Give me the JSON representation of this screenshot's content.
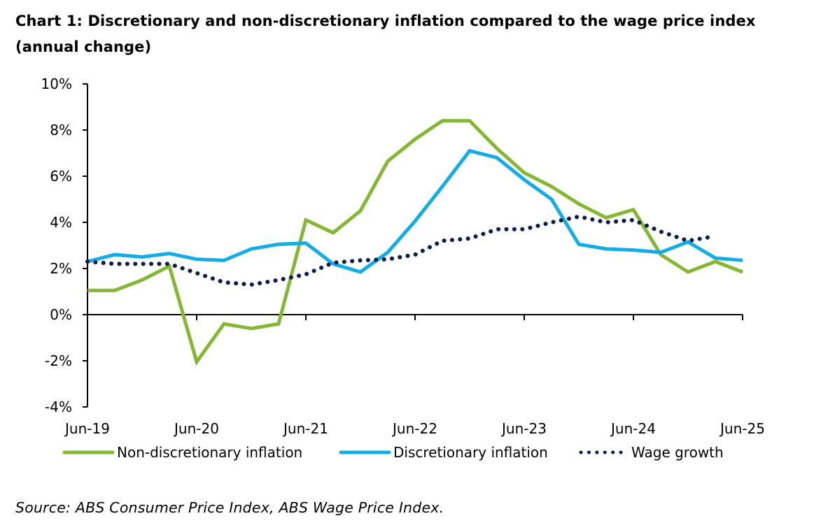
{
  "title_line1": "Chart 1: Discretionary and non-discretionary inflation compared to the wage price index",
  "title_line2": "(annual change)",
  "source": "Source: ABS Consumer Price Index, ABS Wage Price Index.",
  "chart_data": {
    "type": "line",
    "title": "Chart 1: Discretionary and non-discretionary inflation compared to the wage price index (annual change)",
    "xlabel": "",
    "ylabel": "",
    "ylim": [
      -4,
      10
    ],
    "y_ticks": [
      -4,
      -2,
      0,
      2,
      4,
      6,
      8,
      10
    ],
    "y_tick_labels": [
      "-4%",
      "-2%",
      "0%",
      "2%",
      "4%",
      "6%",
      "8%",
      "10%"
    ],
    "x_tick_labels": [
      "Jun-19",
      "Jun-20",
      "Jun-21",
      "Jun-22",
      "Jun-23",
      "Jun-24",
      "Jun-25"
    ],
    "x": [
      "Jun-19",
      "Sep-19",
      "Dec-19",
      "Mar-20",
      "Jun-20",
      "Sep-20",
      "Dec-20",
      "Mar-21",
      "Jun-21",
      "Sep-21",
      "Dec-21",
      "Mar-22",
      "Jun-22",
      "Sep-22",
      "Dec-22",
      "Mar-23",
      "Jun-23",
      "Sep-23",
      "Dec-23",
      "Mar-24",
      "Jun-24",
      "Sep-24",
      "Dec-24",
      "Mar-25",
      "Jun-25"
    ],
    "grid": false,
    "legend_position": "bottom",
    "series": [
      {
        "name": "Non-discretionary inflation",
        "color": "#84B833",
        "style": "solid",
        "values": [
          1.05,
          1.05,
          1.5,
          2.1,
          -2.05,
          -0.4,
          -0.6,
          -0.4,
          4.1,
          3.55,
          4.5,
          6.65,
          7.6,
          8.4,
          8.4,
          7.2,
          6.15,
          5.55,
          4.8,
          4.2,
          4.55,
          2.6,
          1.85,
          2.3,
          1.85
        ]
      },
      {
        "name": "Discretionary inflation",
        "color": "#12ADE5",
        "style": "solid",
        "values": [
          2.3,
          2.6,
          2.5,
          2.65,
          2.4,
          2.35,
          2.85,
          3.05,
          3.1,
          2.2,
          1.85,
          2.7,
          4.05,
          5.55,
          7.1,
          6.8,
          5.85,
          5.0,
          3.05,
          2.85,
          2.8,
          2.7,
          3.15,
          2.45,
          2.35
        ]
      },
      {
        "name": "Wage growth",
        "color": "#0B1E4B",
        "style": "dotted",
        "values": [
          2.3,
          2.2,
          2.2,
          2.2,
          1.8,
          1.4,
          1.3,
          1.5,
          1.75,
          2.25,
          2.35,
          2.4,
          2.6,
          3.2,
          3.3,
          3.7,
          3.7,
          4.0,
          4.25,
          4.0,
          4.1,
          3.6,
          3.2,
          3.4,
          null
        ]
      }
    ]
  }
}
